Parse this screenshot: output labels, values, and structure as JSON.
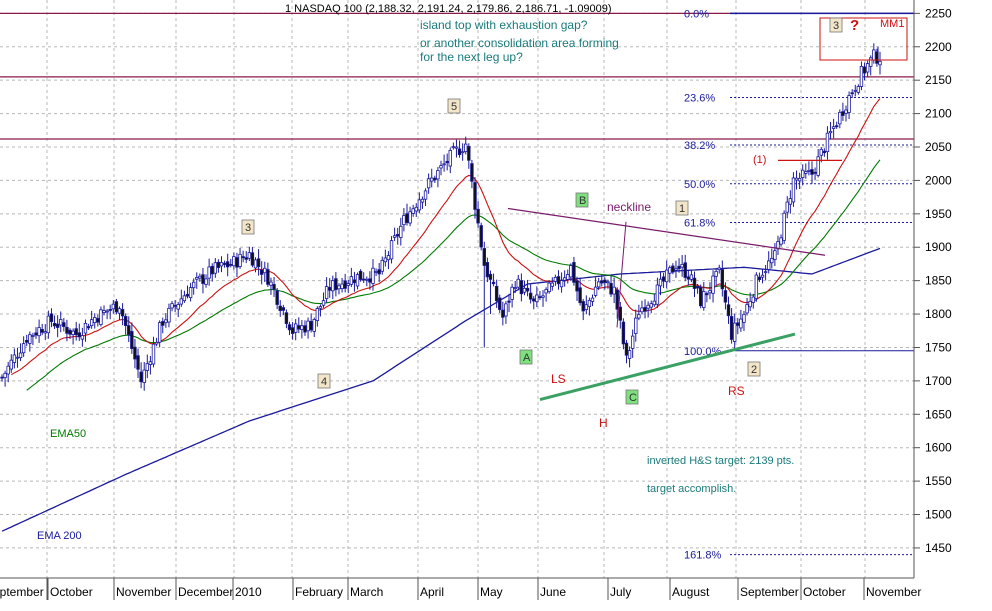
{
  "chart_data": {
    "type": "candlestick",
    "title": "1 NASDAQ 100 (2,188.32, 2,191.24, 2,179.86, 2,186.71, -1.09009)",
    "x_labels": [
      "September",
      "October",
      "November",
      "December",
      "2010",
      "February",
      "March",
      "April",
      "May",
      "June",
      "July",
      "August",
      "September",
      "October",
      "November"
    ],
    "y_ticks": [
      1450,
      1500,
      1550,
      1600,
      1650,
      1700,
      1750,
      1800,
      1850,
      1900,
      1950,
      2000,
      2050,
      2100,
      2150,
      2200,
      2250
    ],
    "ylim": [
      1405,
      2270
    ],
    "grid": true,
    "price_anchors": [
      [
        0,
        1705
      ],
      [
        8,
        1765
      ],
      [
        16,
        1790
      ],
      [
        24,
        1770
      ],
      [
        30,
        1795
      ],
      [
        38,
        1815
      ],
      [
        45,
        1700
      ],
      [
        52,
        1790
      ],
      [
        60,
        1835
      ],
      [
        68,
        1865
      ],
      [
        74,
        1875
      ],
      [
        80,
        1890
      ],
      [
        86,
        1855
      ],
      [
        94,
        1775
      ],
      [
        100,
        1785
      ],
      [
        106,
        1840
      ],
      [
        114,
        1855
      ],
      [
        122,
        1860
      ],
      [
        130,
        1940
      ],
      [
        138,
        1995
      ],
      [
        146,
        2040
      ],
      [
        150,
        2055
      ],
      [
        156,
        1875
      ],
      [
        162,
        1795
      ],
      [
        166,
        1850
      ],
      [
        172,
        1815
      ],
      [
        178,
        1840
      ],
      [
        184,
        1870
      ],
      [
        188,
        1800
      ],
      [
        193,
        1850
      ],
      [
        198,
        1835
      ],
      [
        202,
        1730
      ],
      [
        206,
        1805
      ],
      [
        212,
        1835
      ],
      [
        218,
        1875
      ],
      [
        222,
        1860
      ],
      [
        226,
        1820
      ],
      [
        232,
        1860
      ],
      [
        236,
        1770
      ],
      [
        240,
        1800
      ],
      [
        245,
        1860
      ],
      [
        250,
        1885
      ],
      [
        256,
        2000
      ],
      [
        262,
        2010
      ],
      [
        268,
        2070
      ],
      [
        274,
        2125
      ],
      [
        278,
        2160
      ],
      [
        282,
        2185
      ]
    ],
    "indicators": [
      {
        "name": "EMA50",
        "color": "#007a00"
      },
      {
        "name": "EMA 200",
        "color": "#1a1a9c"
      },
      {
        "name": "",
        "color": "#cc1111"
      }
    ],
    "fibonacci": [
      {
        "label": "0.0%",
        "value": 2250
      },
      {
        "label": "23.6%",
        "value": 2124
      },
      {
        "label": "38.2%",
        "value": 2053
      },
      {
        "label": "50.0%",
        "value": 1995
      },
      {
        "label": "61.8%",
        "value": 1937
      },
      {
        "label": "100.0%",
        "value": 1745
      },
      {
        "label": "161.8%",
        "value": 1440
      }
    ],
    "horizontal_lines": [
      2250,
      2155,
      2062,
      1745
    ],
    "annotations": {
      "note_line1": "island top with exhaustion gap?",
      "note_line2": "or another consolidation area forming",
      "note_line3": "for the next leg up?",
      "wave_3": "3",
      "wave_4": "4",
      "wave_5": "5",
      "wave_1": "1",
      "wave_2": "2",
      "wave_3b": "3",
      "question": "?",
      "mm1": "MM1",
      "wave_A": "A",
      "wave_B": "B",
      "wave_C": "C",
      "neckline": "neckline",
      "ls": "LS",
      "h": "H",
      "rs": "RS",
      "paren1": "(1)",
      "target1": "inverted H&S target: 2139 pts.",
      "target2": "target accomplish.",
      "ema50": "EMA50",
      "ema200": "EMA 200"
    },
    "colors": {
      "candle": "#1a1a9c",
      "grid": "#b8b8b8",
      "fib_line": "#1a1a9c",
      "resistance": "#8b1a4a",
      "trendline": "#3aa064",
      "neckline": "#7a1a6a",
      "note_text": "#1a7a7a",
      "label_red": "#cc1111",
      "box_green": "#7ee07e",
      "box_tan": "#f3e6c8"
    }
  }
}
